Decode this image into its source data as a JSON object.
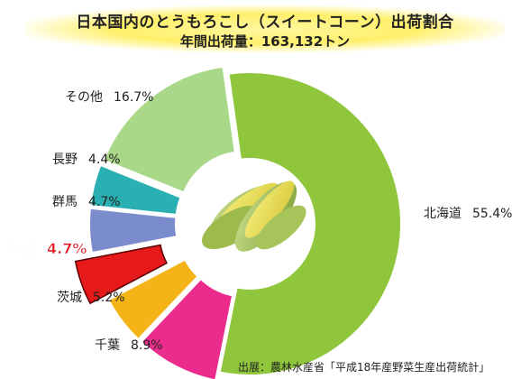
{
  "chart_data": {
    "type": "pie",
    "title": "日本国内のとうもろこし（スイートコーン）出荷割合",
    "subtitle": "年間出荷量：163,132トン",
    "slices": [
      {
        "label": "北海道",
        "value": 55.4,
        "value_text": "55.4%",
        "color": "#8fc63c",
        "highlight": false
      },
      {
        "label": "千葉",
        "value": 8.9,
        "value_text": "8.9%",
        "color": "#ec2c8c",
        "highlight": false
      },
      {
        "label": "茨城",
        "value": 5.2,
        "value_text": "5.2%",
        "color": "#f4b418",
        "highlight": false
      },
      {
        "label": "山梨",
        "value": 4.7,
        "value_text": "4.7%",
        "color": "#e61a1a",
        "highlight": true
      },
      {
        "label": "群馬",
        "value": 4.7,
        "value_text": "4.7%",
        "color": "#7a8ccc",
        "highlight": false
      },
      {
        "label": "長野",
        "value": 4.4,
        "value_text": "4.4%",
        "color": "#2ab0b2",
        "highlight": false
      },
      {
        "label": "その他",
        "value": 16.7,
        "value_text": "16.7%",
        "color": "#a8d888",
        "highlight": false
      }
    ],
    "source": "出展：農林水産省「平成18年産野菜生産出荷統計」",
    "center_image": "corn-illustration"
  }
}
